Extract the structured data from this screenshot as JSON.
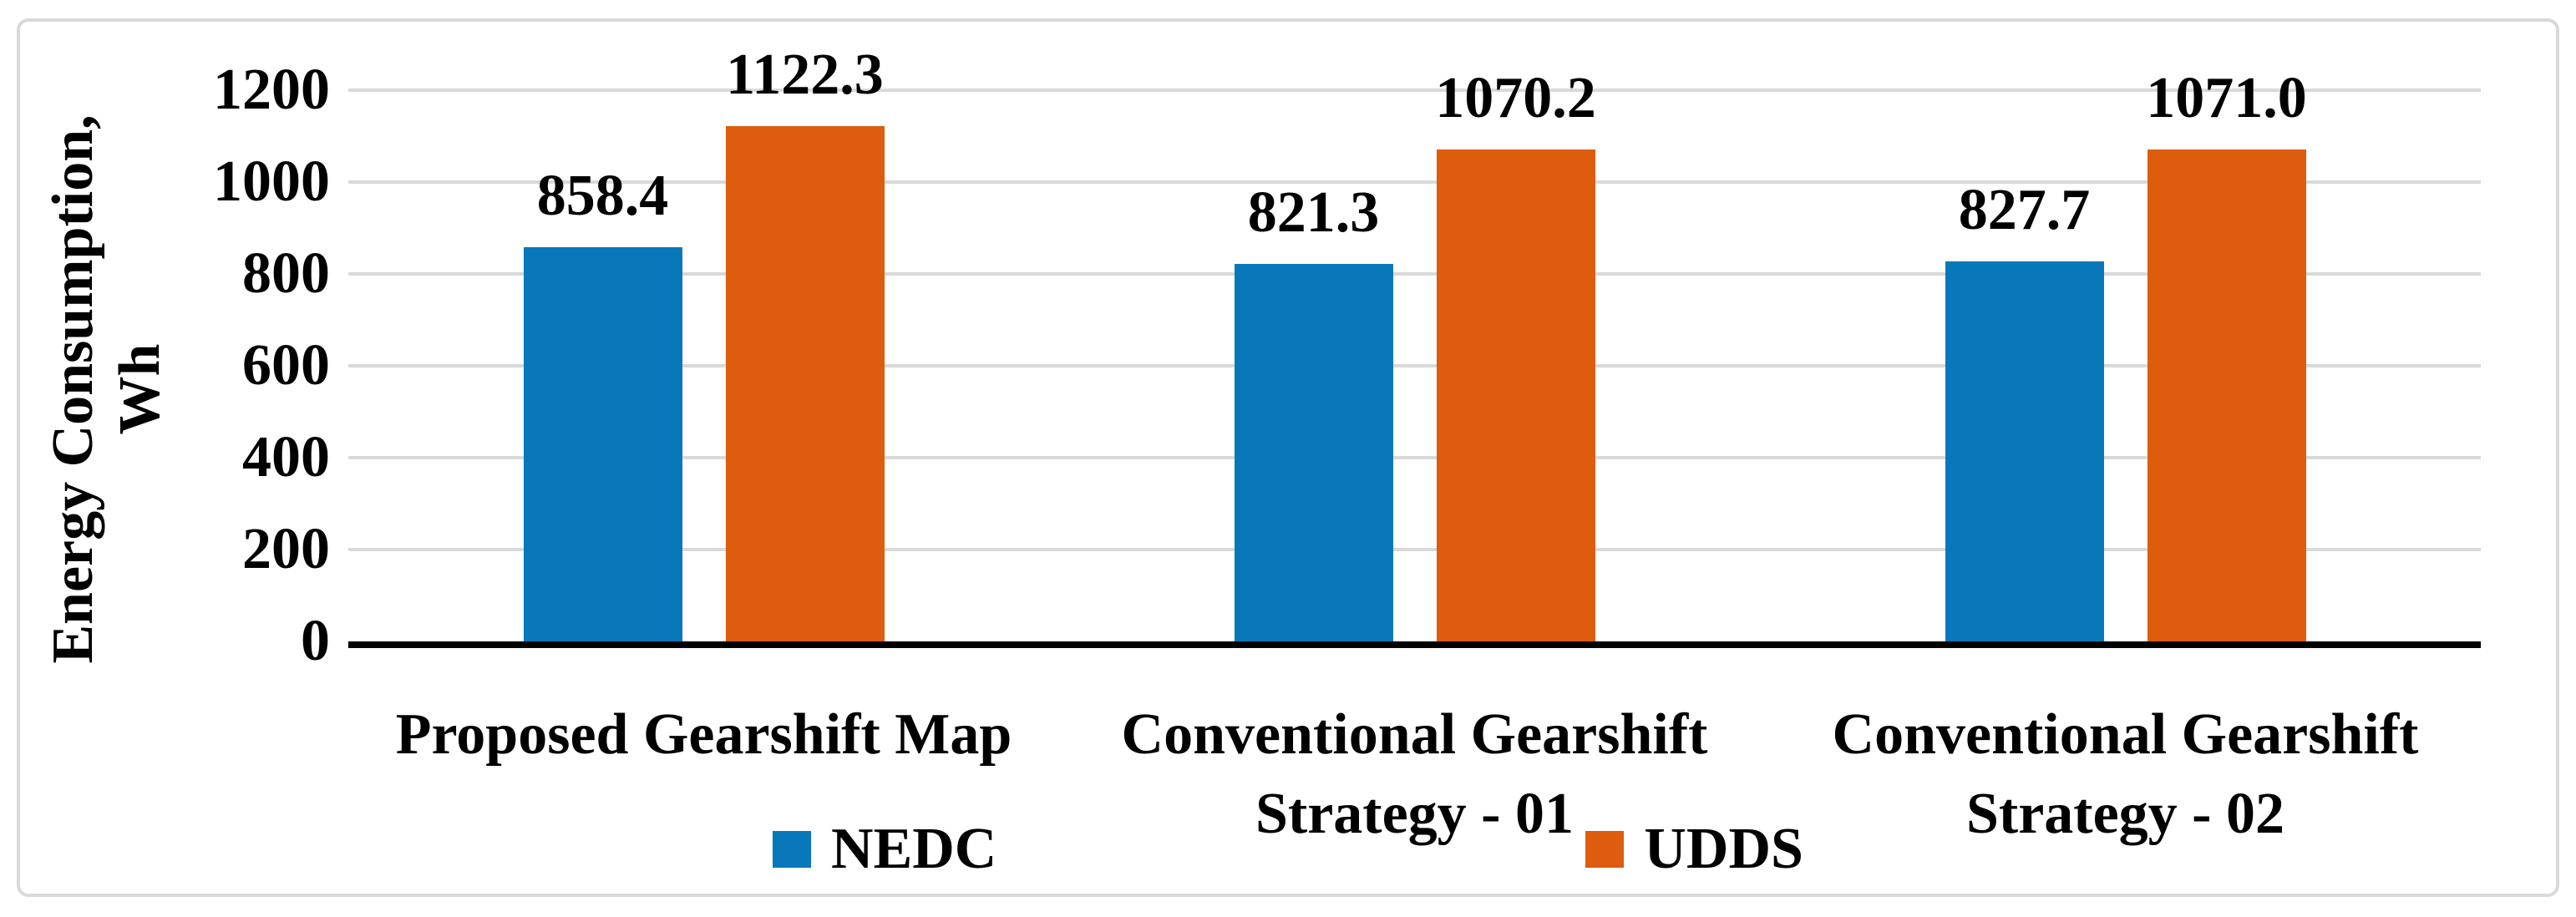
{
  "figure": {
    "background": "#ffffff",
    "border_color": "#d9d9d9",
    "gridline_color": "#d9d9d9",
    "axis_line_color": "#000000",
    "text_color": "#000000"
  },
  "chart_data": {
    "type": "bar",
    "title": "",
    "xlabel": "",
    "ylabel": "Energy Consumption, Wh",
    "ylabel_lines": [
      "Energy Consumption,",
      "Wh"
    ],
    "ylim": [
      0,
      1200
    ],
    "yticks": [
      0,
      200,
      400,
      600,
      800,
      1000,
      1200
    ],
    "grid": "horizontal",
    "legend_position": "bottom",
    "categories": [
      "Proposed Gearshift Map",
      "Conventional Gearshift Strategy - 01",
      "Conventional Gearshift Strategy - 02"
    ],
    "categories_lines": [
      [
        "Proposed Gearshift Map"
      ],
      [
        "Conventional Gearshift",
        "Strategy - 01"
      ],
      [
        "Conventional Gearshift",
        "Strategy - 02"
      ]
    ],
    "series": [
      {
        "name": "NEDC",
        "color": "#0878ba",
        "values": [
          858.4,
          821.3,
          827.7
        ],
        "labels": [
          "858.4",
          "821.3",
          "827.7"
        ]
      },
      {
        "name": "UDDS",
        "color": "#dd5c0d",
        "values": [
          1122.3,
          1070.2,
          1071.0
        ],
        "labels": [
          "1122.3",
          "1070.2",
          "1071.0"
        ]
      }
    ]
  }
}
